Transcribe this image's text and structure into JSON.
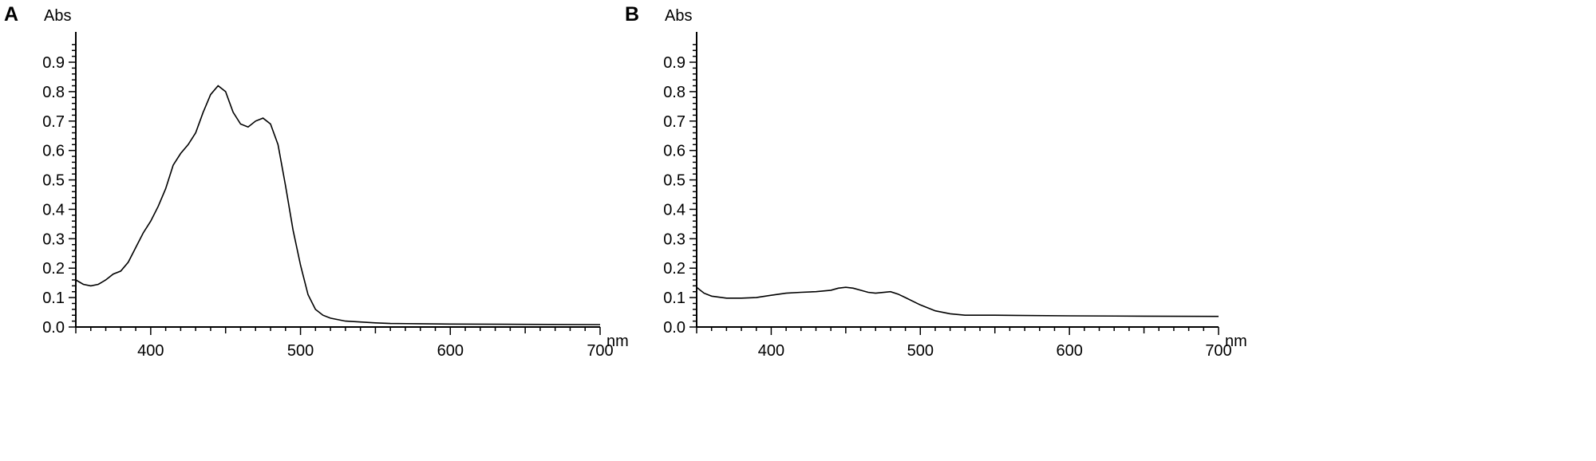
{
  "chart_data": [
    {
      "type": "line",
      "panel": "A",
      "ylabel": "Abs",
      "xlabel": "nm",
      "xlim": [
        350,
        700
      ],
      "ylim": [
        0,
        1.0
      ],
      "x_ticks": [
        400,
        500,
        600,
        700
      ],
      "x_tick_labels": [
        "400",
        "500",
        "600",
        "700"
      ],
      "y_ticks": [
        0.0,
        0.1,
        0.2,
        0.3,
        0.4,
        0.5,
        0.6,
        0.7,
        0.8,
        0.9
      ],
      "y_tick_labels": [
        "0.0",
        "0.1",
        "0.2",
        "0.3",
        "0.4",
        "0.5",
        "0.6",
        "0.7",
        "0.8",
        "0.9"
      ],
      "grid": false,
      "series": [
        {
          "x": [
            350,
            355,
            360,
            365,
            370,
            375,
            380,
            385,
            390,
            395,
            400,
            405,
            410,
            415,
            420,
            425,
            430,
            435,
            440,
            445,
            450,
            455,
            460,
            465,
            470,
            475,
            480,
            485,
            490,
            495,
            500,
            505,
            510,
            515,
            520,
            530,
            540,
            550,
            560,
            580,
            600,
            650,
            700
          ],
          "y": [
            0.16,
            0.145,
            0.14,
            0.145,
            0.16,
            0.18,
            0.19,
            0.22,
            0.27,
            0.32,
            0.36,
            0.41,
            0.47,
            0.55,
            0.59,
            0.62,
            0.66,
            0.73,
            0.79,
            0.82,
            0.8,
            0.73,
            0.69,
            0.68,
            0.7,
            0.71,
            0.69,
            0.62,
            0.48,
            0.33,
            0.21,
            0.11,
            0.06,
            0.04,
            0.03,
            0.02,
            0.017,
            0.014,
            0.012,
            0.011,
            0.01,
            0.009,
            0.008
          ]
        }
      ]
    },
    {
      "type": "line",
      "panel": "B",
      "ylabel": "Abs",
      "xlabel": "nm",
      "xlim": [
        350,
        700
      ],
      "ylim": [
        0,
        1.0
      ],
      "x_ticks": [
        400,
        500,
        600,
        700
      ],
      "x_tick_labels": [
        "400",
        "500",
        "600",
        "700"
      ],
      "y_ticks": [
        0.0,
        0.1,
        0.2,
        0.3,
        0.4,
        0.5,
        0.6,
        0.7,
        0.8,
        0.9
      ],
      "y_tick_labels": [
        "0.0",
        "0.1",
        "0.2",
        "0.3",
        "0.4",
        "0.5",
        "0.6",
        "0.7",
        "0.8",
        "0.9"
      ],
      "grid": false,
      "series": [
        {
          "x": [
            350,
            355,
            360,
            370,
            380,
            390,
            400,
            410,
            420,
            430,
            440,
            445,
            450,
            455,
            460,
            465,
            470,
            480,
            485,
            490,
            500,
            510,
            520,
            530,
            550,
            600,
            650,
            700
          ],
          "y": [
            0.135,
            0.115,
            0.105,
            0.098,
            0.098,
            0.1,
            0.108,
            0.115,
            0.118,
            0.12,
            0.125,
            0.132,
            0.135,
            0.132,
            0.125,
            0.118,
            0.115,
            0.12,
            0.112,
            0.1,
            0.075,
            0.055,
            0.045,
            0.04,
            0.04,
            0.038,
            0.037,
            0.036
          ]
        }
      ]
    }
  ]
}
